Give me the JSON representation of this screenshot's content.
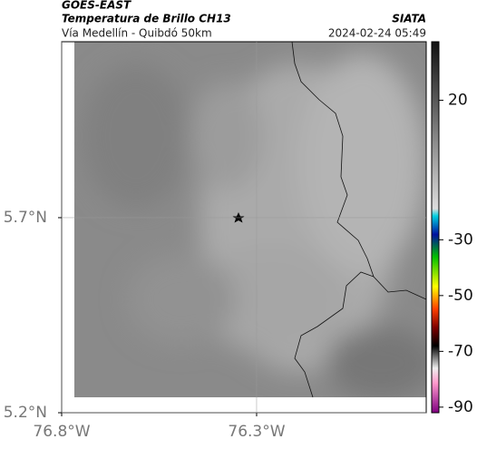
{
  "header": {
    "title": "GOES-EAST",
    "subtitle": "Temperatura de Brillo CH13",
    "route": "Vía Medellín - Quibdó 50km",
    "source": "SIATA",
    "datetime": "2024-02-24 05:49"
  },
  "map": {
    "xlim": [
      -76.8,
      -75.865
    ],
    "ylim": [
      5.2,
      6.151
    ],
    "xticks": [
      {
        "value": -76.8,
        "label": "76.8°W"
      },
      {
        "value": -76.3,
        "label": "76.3°W"
      }
    ],
    "yticks": [
      {
        "value": 5.7,
        "label": "5.7°N"
      },
      {
        "value": 5.2,
        "label": "5.2°N"
      }
    ]
  },
  "colorbar": {
    "lim": [
      -92,
      41
    ],
    "ticks": [
      20,
      -30,
      -50,
      -70,
      -90
    ]
  }
}
